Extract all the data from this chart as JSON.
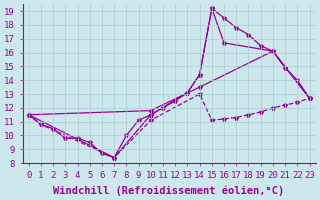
{
  "xlabel": "Windchill (Refroidissement éolien,°C)",
  "bg_color": "#cce8ec",
  "line_color": "#990099",
  "marker": "*",
  "xlim": [
    -0.5,
    23.5
  ],
  "ylim": [
    8,
    19.5
  ],
  "xticks": [
    0,
    1,
    2,
    3,
    4,
    5,
    6,
    7,
    8,
    9,
    10,
    11,
    12,
    13,
    14,
    15,
    16,
    17,
    18,
    19,
    20,
    21,
    22,
    23
  ],
  "yticks": [
    8,
    9,
    10,
    11,
    12,
    13,
    14,
    15,
    16,
    17,
    18,
    19
  ],
  "series": [
    {
      "x": [
        0,
        1,
        2,
        3,
        4,
        5,
        6,
        7,
        8,
        9,
        10,
        11,
        12,
        13,
        14,
        15,
        16,
        17,
        18,
        19,
        20,
        21,
        22,
        23
      ],
      "y": [
        11.5,
        10.8,
        10.5,
        9.8,
        9.8,
        9.5,
        8.7,
        8.4,
        10.0,
        11.1,
        11.5,
        12.0,
        12.5,
        13.1,
        14.4,
        19.2,
        18.5,
        17.8,
        17.3,
        16.5,
        16.1,
        14.9,
        14.0,
        12.7
      ],
      "linestyle": "-",
      "linewidth": 0.9
    },
    {
      "x": [
        0,
        7,
        10,
        13,
        14,
        15,
        16,
        20,
        23
      ],
      "y": [
        11.5,
        8.4,
        11.5,
        13.1,
        14.4,
        19.2,
        16.7,
        16.1,
        12.7
      ],
      "linestyle": "-",
      "linewidth": 0.9
    },
    {
      "x": [
        0,
        10,
        14,
        20,
        23
      ],
      "y": [
        11.5,
        11.8,
        13.5,
        16.1,
        12.7
      ],
      "linestyle": "-",
      "linewidth": 0.9
    },
    {
      "x": [
        0,
        1,
        7,
        10,
        14,
        15,
        16,
        17,
        18,
        19,
        20,
        21,
        22,
        23
      ],
      "y": [
        11.5,
        10.8,
        8.4,
        11.1,
        13.0,
        11.1,
        11.2,
        11.3,
        11.5,
        11.7,
        12.0,
        12.2,
        12.4,
        12.7
      ],
      "linestyle": "--",
      "linewidth": 0.9
    }
  ],
  "grid_color": "#aacccc",
  "tick_fontsize": 6.5,
  "xlabel_fontsize": 7.5
}
